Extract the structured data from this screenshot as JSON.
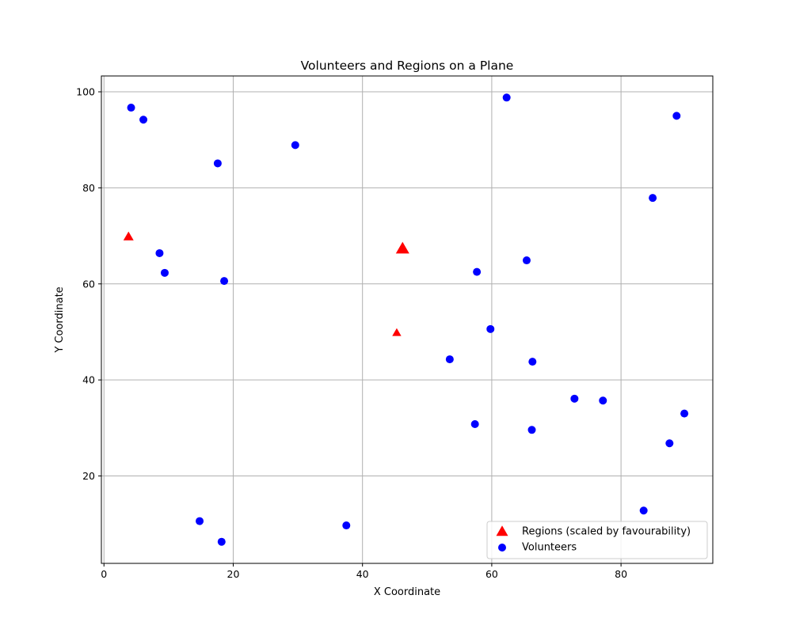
{
  "chart_data": {
    "type": "scatter",
    "title": "Volunteers and Regions on a Plane",
    "xlabel": "X Coordinate",
    "ylabel": "Y Coordinate",
    "xlim": [
      -0.4,
      94.2
    ],
    "ylim": [
      1.8,
      103.3
    ],
    "xticks": [
      0,
      20,
      40,
      60,
      80
    ],
    "yticks": [
      20,
      40,
      60,
      80,
      100
    ],
    "grid": true,
    "legend_position": "lower-right",
    "series": [
      {
        "name": "Regions (scaled by favourability)",
        "marker": "triangle",
        "color": "#ff0000",
        "points": [
          {
            "x": 3.8,
            "y": 69.8,
            "favourability": 0.55
          },
          {
            "x": 46.2,
            "y": 67.3,
            "favourability": 1.0
          },
          {
            "x": 45.3,
            "y": 49.8,
            "favourability": 0.38
          }
        ]
      },
      {
        "name": "Volunteers",
        "marker": "circle",
        "color": "#0000ff",
        "points": [
          {
            "x": 4.2,
            "y": 96.7
          },
          {
            "x": 6.1,
            "y": 94.2
          },
          {
            "x": 17.6,
            "y": 85.1
          },
          {
            "x": 29.6,
            "y": 88.9
          },
          {
            "x": 62.3,
            "y": 98.8
          },
          {
            "x": 88.6,
            "y": 95.0
          },
          {
            "x": 84.9,
            "y": 77.9
          },
          {
            "x": 8.6,
            "y": 66.4
          },
          {
            "x": 9.4,
            "y": 62.3
          },
          {
            "x": 18.6,
            "y": 60.6
          },
          {
            "x": 57.7,
            "y": 62.5
          },
          {
            "x": 65.4,
            "y": 64.9
          },
          {
            "x": 59.8,
            "y": 50.6
          },
          {
            "x": 53.5,
            "y": 44.3
          },
          {
            "x": 66.3,
            "y": 43.8
          },
          {
            "x": 72.8,
            "y": 36.1
          },
          {
            "x": 77.2,
            "y": 35.7
          },
          {
            "x": 89.8,
            "y": 33.0
          },
          {
            "x": 57.4,
            "y": 30.8
          },
          {
            "x": 66.2,
            "y": 29.6
          },
          {
            "x": 87.5,
            "y": 26.8
          },
          {
            "x": 83.5,
            "y": 12.8
          },
          {
            "x": 14.8,
            "y": 10.6
          },
          {
            "x": 18.2,
            "y": 6.3
          },
          {
            "x": 37.5,
            "y": 9.7
          }
        ]
      }
    ]
  }
}
